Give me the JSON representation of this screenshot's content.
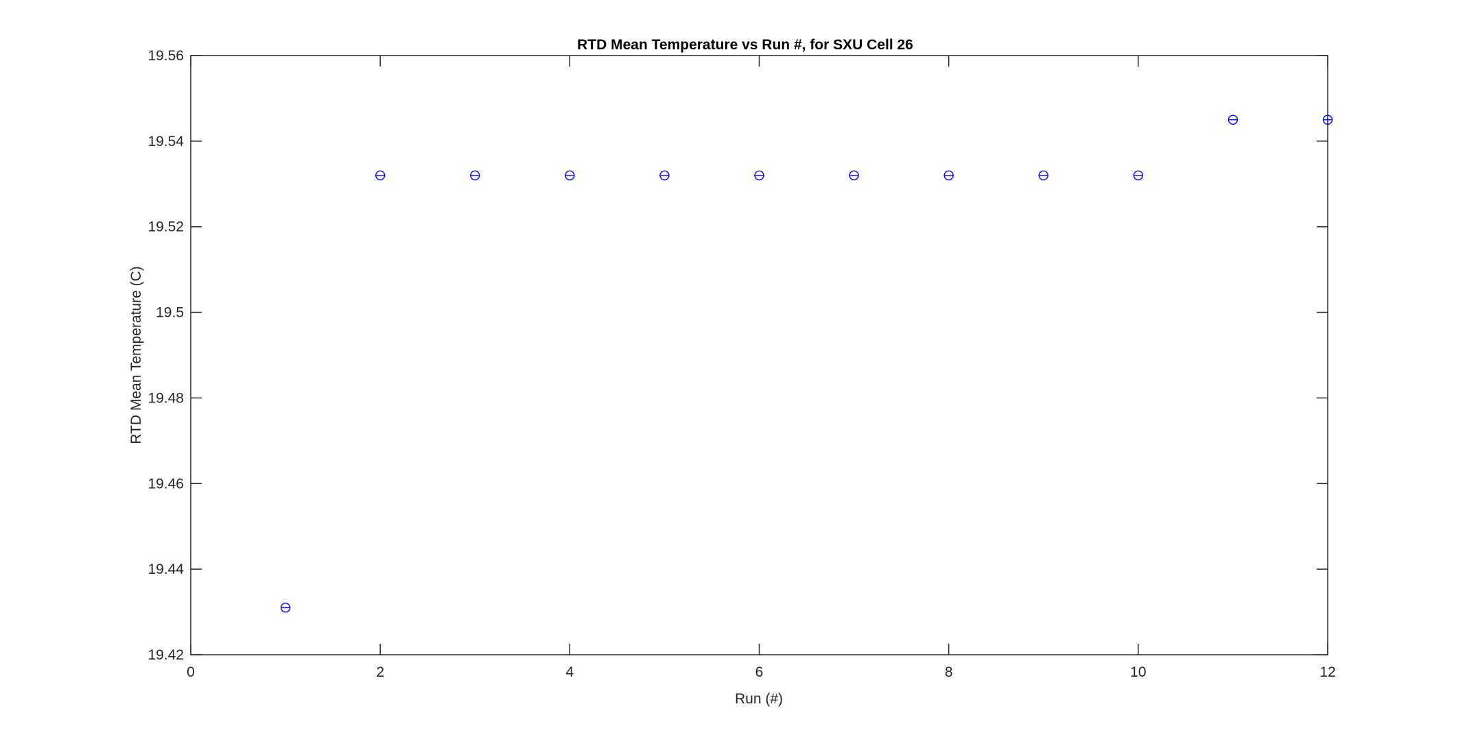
{
  "chart_data": {
    "type": "scatter",
    "title": "RTD Mean Temperature vs Run #, for SXU Cell 26",
    "xlabel": "Run (#)",
    "ylabel": "RTD Mean Temperature (C)",
    "xlim": [
      0,
      12
    ],
    "ylim": [
      19.42,
      19.56
    ],
    "xticks": [
      "0",
      "2",
      "4",
      "6",
      "8",
      "10",
      "12"
    ],
    "yticks": [
      "19.42",
      "19.44",
      "19.46",
      "19.48",
      "19.5",
      "19.52",
      "19.54",
      "19.56"
    ],
    "grid": false,
    "marker": "circle-with-horizontal-line",
    "marker_color": "#0000ff",
    "series": [
      {
        "x": [
          1,
          2,
          3,
          4,
          5,
          6,
          7,
          8,
          9,
          10,
          11,
          12
        ],
        "y": [
          19.431,
          19.532,
          19.532,
          19.532,
          19.532,
          19.532,
          19.532,
          19.532,
          19.532,
          19.532,
          19.545,
          19.545
        ]
      }
    ]
  }
}
